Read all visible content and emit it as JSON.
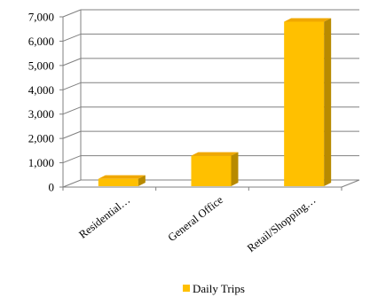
{
  "chart_data": {
    "type": "bar",
    "style": "3d-clustered-column",
    "categories": [
      "Residential…",
      "General Office",
      "Retail/Shopping…"
    ],
    "series": [
      {
        "name": "Daily Trips",
        "values": [
          340,
          1290,
          6800
        ]
      }
    ],
    "ylim": [
      0,
      7000
    ],
    "yticks": [
      "0",
      "1,000",
      "2,000",
      "3,000",
      "4,000",
      "5,000",
      "6,000",
      "7,000"
    ],
    "grid": true,
    "legend_position": "bottom",
    "colors": {
      "bar_front": "#FFC000",
      "bar_top": "#F0A800",
      "bar_side": "#B88A00",
      "gridline": "#808080",
      "axis": "#808080"
    }
  }
}
